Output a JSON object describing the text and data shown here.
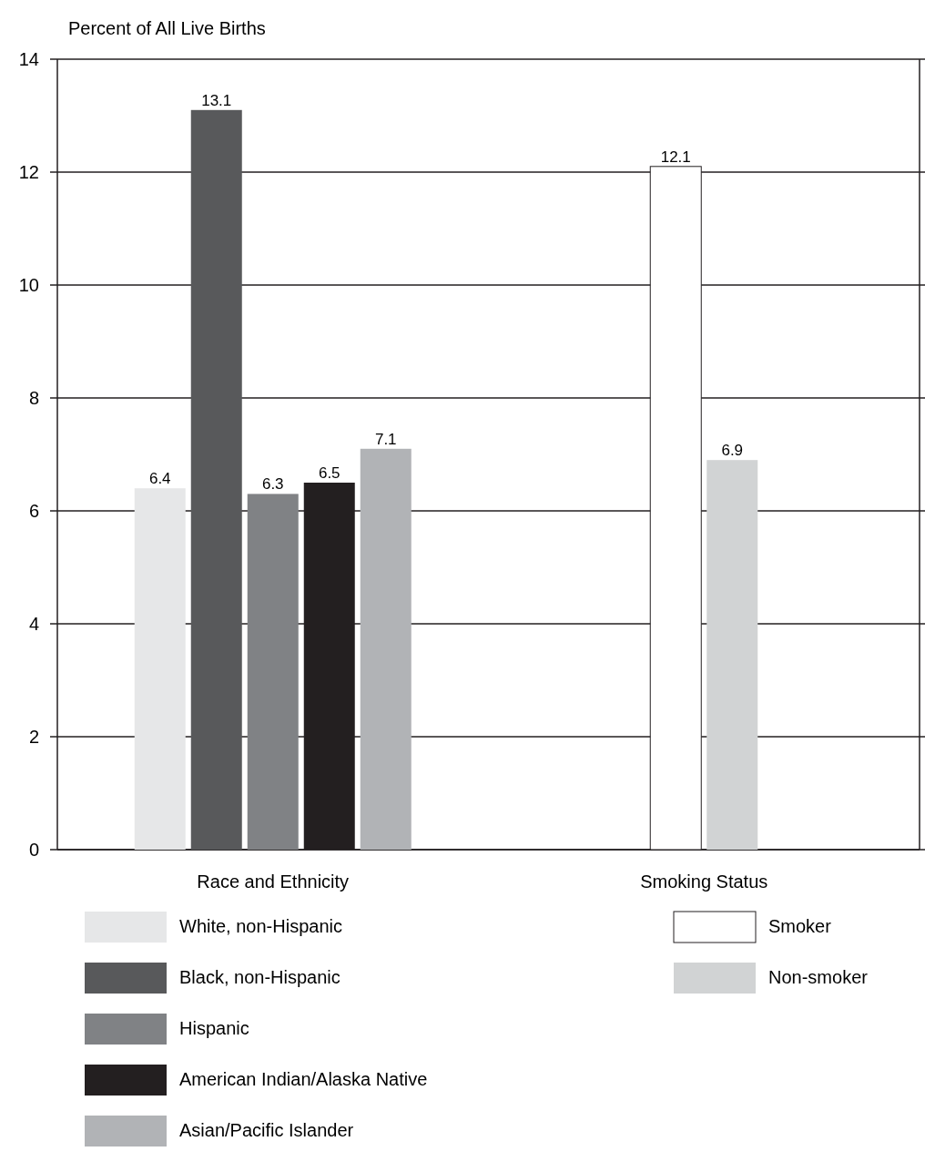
{
  "chart_data": {
    "type": "bar",
    "ylabel": "Percent of All Live Births",
    "categories": [
      "Race and Ethnicity",
      "Smoking Status"
    ],
    "series": [
      {
        "name": "White, non-Hispanic",
        "color": "#e6e7e8",
        "values": [
          6.4,
          null
        ]
      },
      {
        "name": "Black, non-Hispanic",
        "color": "#58595b",
        "values": [
          13.1,
          null
        ]
      },
      {
        "name": "Hispanic",
        "color": "#808285",
        "values": [
          6.3,
          null
        ]
      },
      {
        "name": "American Indian/Alaska Native",
        "color": "#231f20",
        "values": [
          6.5,
          null
        ]
      },
      {
        "name": "Asian/Pacific Islander",
        "color": "#b1b3b6",
        "values": [
          7.1,
          null
        ]
      },
      {
        "name": "Smoker",
        "color": "#ffffff",
        "values": [
          null,
          12.1
        ]
      },
      {
        "name": "Non-smoker",
        "color": "#d1d3d4",
        "values": [
          null,
          6.9
        ]
      }
    ],
    "ylim": [
      0,
      14
    ],
    "yticks": [
      0,
      2,
      4,
      6,
      8,
      10,
      12,
      14
    ],
    "grid": "y",
    "data_labels": true,
    "legend": "bottom"
  }
}
